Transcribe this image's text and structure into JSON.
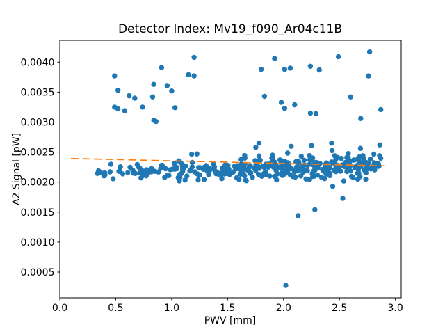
{
  "figure": {
    "background": "#ffffff",
    "spine_color": "#000000",
    "tick_color": "#000000",
    "text_color": "#000000"
  },
  "chart_data": {
    "type": "scatter",
    "title": "Detector Index: Mv19_f090_Ar04c11B",
    "xlabel": "PWV [mm]",
    "ylabel": "A2 Signal [pW]",
    "xlim": [
      0.0,
      3.052
    ],
    "ylim": [
      7.07e-05,
      0.004363
    ],
    "grid": false,
    "legend": null,
    "x_ticks": {
      "values": [
        0.0,
        0.5,
        1.0,
        1.5,
        2.0,
        2.5,
        3.0
      ],
      "labels": [
        "0.0",
        "0.5",
        "1.0",
        "1.5",
        "2.0",
        "2.5",
        "3.0"
      ]
    },
    "y_ticks": {
      "values": [
        0.0005,
        0.001,
        0.0015,
        0.002,
        0.0025,
        0.003,
        0.0035,
        0.004
      ],
      "labels": [
        "0.0005",
        "0.0010",
        "0.0015",
        "0.0020",
        "0.0025",
        "0.0030",
        "0.0035",
        "0.0040"
      ]
    },
    "marker": {
      "color": "#1f77b4",
      "radius": 3.7
    },
    "trend_line": {
      "color": "#ff7f0e",
      "style": "dashed",
      "dash": [
        11,
        5.5
      ],
      "width": 1.7,
      "x1": 0.1,
      "y1": 0.002394,
      "x2": 2.9,
      "y2": 0.002271
    },
    "outlier_points": [
      [
        0.49,
        0.00377
      ],
      [
        0.52,
        0.00353
      ],
      [
        0.49,
        0.00325
      ],
      [
        0.52,
        0.00322
      ],
      [
        0.58,
        0.00319
      ],
      [
        0.62,
        0.00344
      ],
      [
        0.67,
        0.0034
      ],
      [
        0.74,
        0.00325
      ],
      [
        0.84,
        0.00363
      ],
      [
        0.83,
        0.00342
      ],
      [
        0.84,
        0.00303
      ],
      [
        0.86,
        0.00301
      ],
      [
        0.91,
        0.00391
      ],
      [
        0.96,
        0.00361
      ],
      [
        1.0,
        0.00352
      ],
      [
        1.03,
        0.00324
      ],
      [
        1.15,
        0.00379
      ],
      [
        1.2,
        0.00408
      ],
      [
        1.2,
        0.00377
      ],
      [
        1.8,
        0.00388
      ],
      [
        1.83,
        0.00343
      ],
      [
        1.92,
        0.00406
      ],
      [
        1.98,
        0.00333
      ],
      [
        2.01,
        0.00388
      ],
      [
        2.06,
        0.0039
      ],
      [
        2.01,
        0.00323
      ],
      [
        2.1,
        0.00329
      ],
      [
        2.24,
        0.00393
      ],
      [
        2.32,
        0.00387
      ],
      [
        2.24,
        0.00315
      ],
      [
        2.29,
        0.00314
      ],
      [
        2.49,
        0.00409
      ],
      [
        2.6,
        0.00342
      ],
      [
        2.69,
        0.00306
      ],
      [
        2.76,
        0.00377
      ],
      [
        2.77,
        0.00417
      ],
      [
        2.87,
        0.00321
      ],
      [
        1.78,
        0.00265
      ],
      [
        2.25,
        0.00261
      ],
      [
        2.43,
        0.00265
      ],
      [
        2.44,
        0.00193
      ],
      [
        2.53,
        0.00173
      ],
      [
        2.28,
        0.00154
      ],
      [
        2.13,
        0.00144
      ],
      [
        2.02,
        0.00028
      ]
    ],
    "dense_band": {
      "description": "dense horizontal cloud of samples between PWV 0.33 and 2.87 mm, signal ~0.0021-0.0026 pW, density increasing toward higher PWV",
      "seed": 7,
      "count": 380,
      "x_min": 0.315,
      "x_max": 2.87,
      "x_bias_exponent": 0.65,
      "y_center_at_x0": 0.002135,
      "y_center_slope": 5e-05,
      "y_sd_at_x0": 5e-05,
      "y_sd_slope": 2.2e-05,
      "gauss_clip_lo": -2.3,
      "gauss_clip_hi": 2.6,
      "high_tail_prob": 0.05,
      "high_tail_extra_max": 0.00025,
      "y_clip_min": 0.00197,
      "y_clip_max": 0.00262
    }
  }
}
